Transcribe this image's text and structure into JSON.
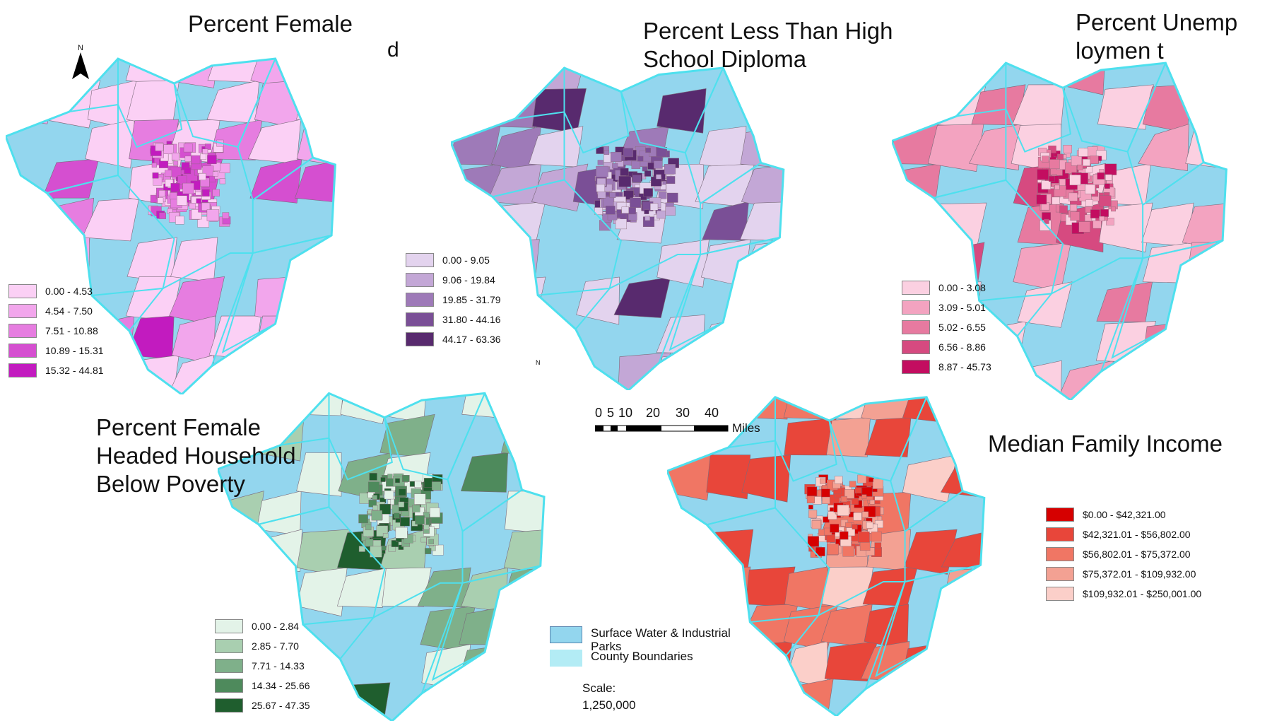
{
  "colors": {
    "water": "#93d6ee",
    "county": "#b3ecf5",
    "county_stroke": "#4ee0ee"
  },
  "stray_glyph": "d",
  "north_label": "N",
  "maps": [
    {
      "id": "female",
      "title": "Percent Female",
      "classes": [
        {
          "label": "0.00 - 4.53",
          "color": "#fbd0f5"
        },
        {
          "label": "4.54 - 7.50",
          "color": "#f2a6ec"
        },
        {
          "label": "7.51 - 10.88",
          "color": "#e67de0"
        },
        {
          "label": "10.89 - 15.31",
          "color": "#d54fd0"
        },
        {
          "label": "15.32 - 44.81",
          "color": "#c21bbf"
        }
      ]
    },
    {
      "id": "education",
      "title": "Percent Less Than High School Diploma",
      "classes": [
        {
          "label": "0.00 - 9.05",
          "color": "#e3d3ee"
        },
        {
          "label": "9.06 - 19.84",
          "color": "#c3a7d6"
        },
        {
          "label": "19.85 - 31.79",
          "color": "#9e7ab8"
        },
        {
          "label": "31.80 - 44.16",
          "color": "#7a4f96"
        },
        {
          "label": "44.17 - 63.36",
          "color": "#582a6e"
        }
      ]
    },
    {
      "id": "unemployment",
      "title": "Percent Unemploymen t",
      "classes": [
        {
          "label": "0.00 - 3.08",
          "color": "#fbd0e1"
        },
        {
          "label": "3.09 - 5.01",
          "color": "#f3a3c0"
        },
        {
          "label": "5.02 - 6.55",
          "color": "#e77aa0"
        },
        {
          "label": "6.56 - 8.86",
          "color": "#d64a80"
        },
        {
          "label": "8.87 - 45.73",
          "color": "#c30d60"
        }
      ]
    },
    {
      "id": "poverty",
      "title": "Percent Female Headed Household Below Poverty",
      "classes": [
        {
          "label": "0.00 - 2.84",
          "color": "#e3f3e8"
        },
        {
          "label": "2.85 - 7.70",
          "color": "#a9cfb0"
        },
        {
          "label": "7.71 - 14.33",
          "color": "#7fb08a"
        },
        {
          "label": "14.34 - 25.66",
          "color": "#4e8a5c"
        },
        {
          "label": "25.67 - 47.35",
          "color": "#1f5e2e"
        }
      ]
    },
    {
      "id": "income",
      "title": "Median Family Income",
      "classes": [
        {
          "label": "$0.00 - $42,321.00",
          "color": "#d60000"
        },
        {
          "label": "$42,321.01 - $56,802.00",
          "color": "#e8463a"
        },
        {
          "label": "$56,802.01 - $75,372.00",
          "color": "#f07664"
        },
        {
          "label": "$75,372.01 - $109,932.00",
          "color": "#f3a193"
        },
        {
          "label": "$109,932.01 - $250,001.00",
          "color": "#fbcfc9"
        }
      ]
    }
  ],
  "scale_bar": {
    "ticks": [
      "0",
      "5",
      "10",
      "20",
      "30",
      "40"
    ],
    "unit": "Miles"
  },
  "layers": [
    {
      "label": "Surface Water & Industrial Parks",
      "color": "#93d6ee"
    },
    {
      "label": "County Boundaries",
      "color": "#b3ecf5"
    }
  ],
  "scale": {
    "label": "Scale:",
    "value": "1,250,000"
  }
}
